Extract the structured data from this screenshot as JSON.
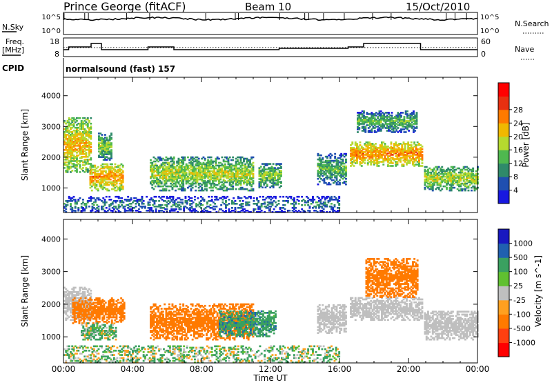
{
  "header": {
    "station": "Prince George (fitACF)",
    "beam": "Beam 10",
    "date": "15/Oct/2010"
  },
  "noise_panel": {
    "left_label": "N.Sky",
    "right_label": "N.Search",
    "tick_top": "10^5",
    "tick_bottom": "10^0"
  },
  "freq_panel": {
    "left_label_1": "Freq.",
    "left_label_2": "[MHz]",
    "left_ticks": [
      "18",
      "8"
    ],
    "right_label": "Nave",
    "right_ticks": [
      "60",
      "0"
    ]
  },
  "cpid": {
    "label": "CPID",
    "value": "normalsound (fast) 157"
  },
  "x_axis": {
    "label": "Time UT",
    "tick_labels": [
      "00:00",
      "04:00",
      "08:00",
      "12:00",
      "16:00",
      "20:00",
      "00:00"
    ]
  },
  "y_axis": {
    "label": "Slant Range [km]",
    "tick_labels": [
      "1000",
      "2000",
      "3000",
      "4000"
    ]
  },
  "colors": {
    "ground_scatter": "#bfbfbf"
  },
  "chart_data": [
    {
      "type": "heatmap",
      "quantity": "Power",
      "colorbar_label": "Power [dB]",
      "colorbar_ticks": [
        "4",
        "8",
        "12",
        "16",
        "20",
        "24",
        "28"
      ],
      "colorbar_colors": [
        "#1818e0",
        "#1f4fb0",
        "#2f8a6a",
        "#4fb84f",
        "#b5d92f",
        "#f0b800",
        "#ff7a00",
        "#e83010",
        "#ff0000"
      ],
      "x_range_hours": [
        0,
        24
      ],
      "y_range_km": [
        200,
        4600
      ],
      "echo_regions": [
        {
          "t_start": 0.0,
          "t_end": 1.6,
          "r_low": 1500,
          "r_high": 3300,
          "level": 18
        },
        {
          "t_start": 1.5,
          "t_end": 3.4,
          "r_low": 900,
          "r_high": 1800,
          "level": 20
        },
        {
          "t_start": 2.0,
          "t_end": 2.8,
          "r_low": 1900,
          "r_high": 2800,
          "level": 12
        },
        {
          "t_start": 5.0,
          "t_end": 11.0,
          "r_low": 900,
          "r_high": 2000,
          "level": 14
        },
        {
          "t_start": 11.3,
          "t_end": 12.6,
          "r_low": 1000,
          "r_high": 1800,
          "level": 12
        },
        {
          "t_start": 14.7,
          "t_end": 16.4,
          "r_low": 1100,
          "r_high": 2100,
          "level": 10
        },
        {
          "t_start": 16.6,
          "t_end": 20.8,
          "r_low": 1700,
          "r_high": 2500,
          "level": 21
        },
        {
          "t_start": 17.0,
          "t_end": 20.5,
          "r_low": 2800,
          "r_high": 3500,
          "level": 10
        },
        {
          "t_start": 20.9,
          "t_end": 24.0,
          "r_low": 900,
          "r_high": 1700,
          "level": 14
        },
        {
          "t_start": 0.0,
          "t_end": 16.0,
          "r_low": 200,
          "r_high": 700,
          "level": 6
        }
      ]
    },
    {
      "type": "heatmap",
      "quantity": "Velocity",
      "colorbar_label": "Velocity [m s^-1]",
      "colorbar_ticks": [
        "1000",
        "500",
        "100",
        "25",
        "-25",
        "-100",
        "-500",
        "-1000"
      ],
      "colorbar_colors": [
        "#1818c0",
        "#2060b0",
        "#3aa060",
        "#60c030",
        "#bfbfbf",
        "#ffa020",
        "#ff7a00",
        "#ff4010",
        "#ff0000"
      ],
      "x_range_hours": [
        0,
        24
      ],
      "y_range_km": [
        200,
        4600
      ],
      "echo_regions": [
        {
          "t_start": 0.0,
          "t_end": 1.6,
          "r_low": 1500,
          "r_high": 2500,
          "value": 0
        },
        {
          "t_start": 0.5,
          "t_end": 3.5,
          "r_low": 1400,
          "r_high": 2200,
          "value": -300
        },
        {
          "t_start": 1.0,
          "t_end": 3.0,
          "r_low": 900,
          "r_high": 1400,
          "value": 80
        },
        {
          "t_start": 5.0,
          "t_end": 11.0,
          "r_low": 900,
          "r_high": 2000,
          "value": -250
        },
        {
          "t_start": 9.0,
          "t_end": 12.3,
          "r_low": 1000,
          "r_high": 1800,
          "value": 200
        },
        {
          "t_start": 14.7,
          "t_end": 16.4,
          "r_low": 1100,
          "r_high": 2000,
          "value": 0
        },
        {
          "t_start": 16.6,
          "t_end": 20.8,
          "r_low": 1500,
          "r_high": 2200,
          "value": 0
        },
        {
          "t_start": 17.5,
          "t_end": 20.5,
          "r_low": 2200,
          "r_high": 3400,
          "value": -300
        },
        {
          "t_start": 20.9,
          "t_end": 24.0,
          "r_low": 900,
          "r_high": 1800,
          "value": 0
        },
        {
          "t_start": 0.0,
          "t_end": 16.0,
          "r_low": 200,
          "r_high": 700,
          "value": 60
        }
      ]
    }
  ]
}
